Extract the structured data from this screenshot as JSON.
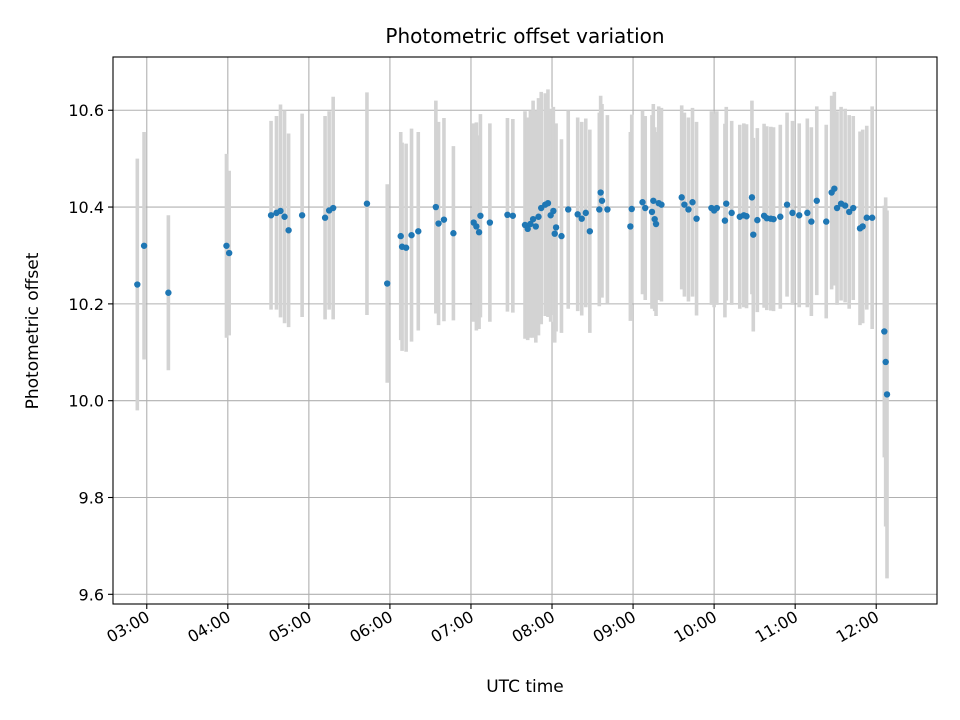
{
  "chart_data": {
    "type": "scatter",
    "title": "Photometric offset variation",
    "xlabel": "UTC time",
    "ylabel": "Photometric offset",
    "xlim": [
      "02:35",
      "12:45"
    ],
    "ylim": [
      9.58,
      10.71
    ],
    "x_ticks": [
      "03:00",
      "04:00",
      "05:00",
      "06:00",
      "07:00",
      "08:00",
      "09:00",
      "10:00",
      "11:00",
      "12:00"
    ],
    "y_ticks": [
      "9.6",
      "9.8",
      "10.0",
      "10.2",
      "10.4",
      "10.6"
    ],
    "grid": true,
    "error_bar_color": "#d3d3d3",
    "marker_color": "#1f77b4",
    "points": [
      {
        "t": "02:53",
        "y": 10.24,
        "err": 0.26
      },
      {
        "t": "02:58",
        "y": 10.32,
        "err": 0.235
      },
      {
        "t": "03:16",
        "y": 10.223,
        "err": 0.16
      },
      {
        "t": "03:59",
        "y": 10.32,
        "err": 0.19
      },
      {
        "t": "04:01",
        "y": 10.305,
        "err": 0.17
      },
      {
        "t": "04:32",
        "y": 10.383,
        "err": 0.195
      },
      {
        "t": "04:36",
        "y": 10.388,
        "err": 0.2
      },
      {
        "t": "04:39",
        "y": 10.392,
        "err": 0.22
      },
      {
        "t": "04:42",
        "y": 10.38,
        "err": 0.22
      },
      {
        "t": "04:45",
        "y": 10.352,
        "err": 0.2
      },
      {
        "t": "04:55",
        "y": 10.383,
        "err": 0.21
      },
      {
        "t": "05:12",
        "y": 10.378,
        "err": 0.21
      },
      {
        "t": "05:15",
        "y": 10.393,
        "err": 0.205
      },
      {
        "t": "05:18",
        "y": 10.398,
        "err": 0.23
      },
      {
        "t": "05:43",
        "y": 10.407,
        "err": 0.23
      },
      {
        "t": "05:58",
        "y": 10.242,
        "err": 0.205
      },
      {
        "t": "06:08",
        "y": 10.34,
        "err": 0.215
      },
      {
        "t": "06:09",
        "y": 10.318,
        "err": 0.215
      },
      {
        "t": "06:12",
        "y": 10.316,
        "err": 0.215
      },
      {
        "t": "06:16",
        "y": 10.342,
        "err": 0.22
      },
      {
        "t": "06:21",
        "y": 10.35,
        "err": 0.205
      },
      {
        "t": "06:34",
        "y": 10.4,
        "err": 0.22
      },
      {
        "t": "06:36",
        "y": 10.366,
        "err": 0.21
      },
      {
        "t": "06:40",
        "y": 10.374,
        "err": 0.21
      },
      {
        "t": "06:47",
        "y": 10.346,
        "err": 0.18
      },
      {
        "t": "07:02",
        "y": 10.368,
        "err": 0.205
      },
      {
        "t": "07:04",
        "y": 10.36,
        "err": 0.215
      },
      {
        "t": "07:06",
        "y": 10.348,
        "err": 0.2
      },
      {
        "t": "07:07",
        "y": 10.382,
        "err": 0.21
      },
      {
        "t": "07:14",
        "y": 10.368,
        "err": 0.205
      },
      {
        "t": "07:27",
        "y": 10.384,
        "err": 0.2
      },
      {
        "t": "07:31",
        "y": 10.382,
        "err": 0.2
      },
      {
        "t": "07:40",
        "y": 10.363,
        "err": 0.235
      },
      {
        "t": "07:42",
        "y": 10.355,
        "err": 0.23
      },
      {
        "t": "07:44",
        "y": 10.365,
        "err": 0.235
      },
      {
        "t": "07:46",
        "y": 10.375,
        "err": 0.245
      },
      {
        "t": "07:48",
        "y": 10.36,
        "err": 0.24
      },
      {
        "t": "07:50",
        "y": 10.38,
        "err": 0.245
      },
      {
        "t": "07:52",
        "y": 10.398,
        "err": 0.24
      },
      {
        "t": "07:55",
        "y": 10.405,
        "err": 0.23
      },
      {
        "t": "07:57",
        "y": 10.408,
        "err": 0.235
      },
      {
        "t": "07:59",
        "y": 10.383,
        "err": 0.22
      },
      {
        "t": "08:01",
        "y": 10.392,
        "err": 0.215
      },
      {
        "t": "08:02",
        "y": 10.345,
        "err": 0.225
      },
      {
        "t": "08:03",
        "y": 10.358,
        "err": 0.215
      },
      {
        "t": "08:07",
        "y": 10.34,
        "err": 0.2
      },
      {
        "t": "08:12",
        "y": 10.395,
        "err": 0.205
      },
      {
        "t": "08:19",
        "y": 10.385,
        "err": 0.2
      },
      {
        "t": "08:22",
        "y": 10.376,
        "err": 0.2
      },
      {
        "t": "08:25",
        "y": 10.388,
        "err": 0.195
      },
      {
        "t": "08:28",
        "y": 10.35,
        "err": 0.21
      },
      {
        "t": "08:35",
        "y": 10.395,
        "err": 0.2
      },
      {
        "t": "08:36",
        "y": 10.43,
        "err": 0.2
      },
      {
        "t": "08:37",
        "y": 10.413,
        "err": 0.2
      },
      {
        "t": "08:41",
        "y": 10.395,
        "err": 0.195
      },
      {
        "t": "08:58",
        "y": 10.36,
        "err": 0.195
      },
      {
        "t": "08:59",
        "y": 10.396,
        "err": 0.195
      },
      {
        "t": "09:07",
        "y": 10.41,
        "err": 0.19
      },
      {
        "t": "09:09",
        "y": 10.398,
        "err": 0.19
      },
      {
        "t": "09:14",
        "y": 10.39,
        "err": 0.2
      },
      {
        "t": "09:15",
        "y": 10.413,
        "err": 0.2
      },
      {
        "t": "09:16",
        "y": 10.375,
        "err": 0.19
      },
      {
        "t": "09:17",
        "y": 10.365,
        "err": 0.19
      },
      {
        "t": "09:19",
        "y": 10.408,
        "err": 0.2
      },
      {
        "t": "09:21",
        "y": 10.405,
        "err": 0.2
      },
      {
        "t": "09:36",
        "y": 10.42,
        "err": 0.19
      },
      {
        "t": "09:38",
        "y": 10.405,
        "err": 0.19
      },
      {
        "t": "09:41",
        "y": 10.395,
        "err": 0.19
      },
      {
        "t": "09:44",
        "y": 10.41,
        "err": 0.195
      },
      {
        "t": "09:47",
        "y": 10.376,
        "err": 0.2
      },
      {
        "t": "09:58",
        "y": 10.398,
        "err": 0.2
      },
      {
        "t": "10:00",
        "y": 10.393,
        "err": 0.2
      },
      {
        "t": "10:02",
        "y": 10.398,
        "err": 0.2
      },
      {
        "t": "10:08",
        "y": 10.372,
        "err": 0.2
      },
      {
        "t": "10:09",
        "y": 10.407,
        "err": 0.2
      },
      {
        "t": "10:13",
        "y": 10.388,
        "err": 0.19
      },
      {
        "t": "10:19",
        "y": 10.38,
        "err": 0.19
      },
      {
        "t": "10:22",
        "y": 10.383,
        "err": 0.19
      },
      {
        "t": "10:24",
        "y": 10.381,
        "err": 0.19
      },
      {
        "t": "10:28",
        "y": 10.42,
        "err": 0.2
      },
      {
        "t": "10:29",
        "y": 10.343,
        "err": 0.2
      },
      {
        "t": "10:32",
        "y": 10.373,
        "err": 0.19
      },
      {
        "t": "10:37",
        "y": 10.382,
        "err": 0.19
      },
      {
        "t": "10:39",
        "y": 10.377,
        "err": 0.19
      },
      {
        "t": "10:42",
        "y": 10.376,
        "err": 0.19
      },
      {
        "t": "10:44",
        "y": 10.375,
        "err": 0.19
      },
      {
        "t": "10:49",
        "y": 10.38,
        "err": 0.19
      },
      {
        "t": "10:54",
        "y": 10.405,
        "err": 0.19
      },
      {
        "t": "10:58",
        "y": 10.388,
        "err": 0.19
      },
      {
        "t": "11:03",
        "y": 10.383,
        "err": 0.19
      },
      {
        "t": "11:09",
        "y": 10.388,
        "err": 0.195
      },
      {
        "t": "11:12",
        "y": 10.37,
        "err": 0.195
      },
      {
        "t": "11:16",
        "y": 10.413,
        "err": 0.195
      },
      {
        "t": "11:23",
        "y": 10.37,
        "err": 0.2
      },
      {
        "t": "11:27",
        "y": 10.43,
        "err": 0.2
      },
      {
        "t": "11:29",
        "y": 10.438,
        "err": 0.2
      },
      {
        "t": "11:31",
        "y": 10.398,
        "err": 0.2
      },
      {
        "t": "11:34",
        "y": 10.407,
        "err": 0.2
      },
      {
        "t": "11:37",
        "y": 10.403,
        "err": 0.2
      },
      {
        "t": "11:40",
        "y": 10.39,
        "err": 0.2
      },
      {
        "t": "11:43",
        "y": 10.398,
        "err": 0.19
      },
      {
        "t": "11:48",
        "y": 10.356,
        "err": 0.2
      },
      {
        "t": "11:50",
        "y": 10.36,
        "err": 0.2
      },
      {
        "t": "11:53",
        "y": 10.378,
        "err": 0.19
      },
      {
        "t": "11:57",
        "y": 10.378,
        "err": 0.23
      },
      {
        "t": "12:06",
        "y": 10.143,
        "err": 0.26
      },
      {
        "t": "12:07",
        "y": 10.08,
        "err": 0.34
      },
      {
        "t": "12:08",
        "y": 10.013,
        "err": 0.38
      }
    ]
  }
}
